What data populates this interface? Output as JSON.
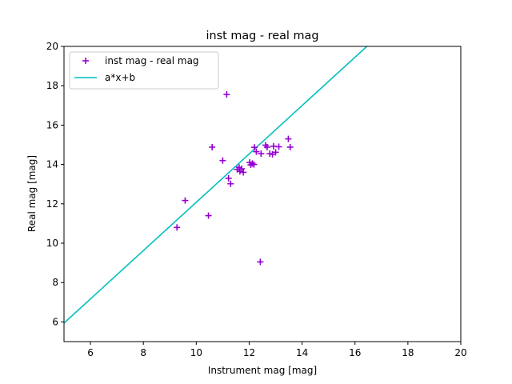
{
  "chart_data": {
    "type": "scatter",
    "title": "inst mag - real mag",
    "xlabel": "Instrument mag [mag]",
    "ylabel": "Real mag [mag]",
    "xlim": [
      5,
      20
    ],
    "ylim": [
      5,
      20
    ],
    "xticks": [
      6,
      8,
      10,
      12,
      14,
      16,
      18,
      20
    ],
    "yticks": [
      6,
      8,
      10,
      12,
      14,
      16,
      18,
      20
    ],
    "grid": false,
    "legend_position": "upper-left",
    "series": [
      {
        "name": "inst mag - real mag",
        "kind": "scatter",
        "marker": "+",
        "color": "#9400D3",
        "points": [
          [
            9.27,
            10.8
          ],
          [
            9.58,
            12.17
          ],
          [
            10.46,
            11.4
          ],
          [
            10.6,
            14.88
          ],
          [
            11.0,
            14.2
          ],
          [
            11.15,
            17.56
          ],
          [
            11.22,
            13.3
          ],
          [
            11.3,
            13.02
          ],
          [
            11.55,
            13.75
          ],
          [
            11.62,
            13.85
          ],
          [
            11.65,
            13.65
          ],
          [
            11.72,
            13.78
          ],
          [
            11.78,
            13.6
          ],
          [
            12.02,
            14.1
          ],
          [
            12.06,
            13.98
          ],
          [
            12.12,
            14.05
          ],
          [
            12.18,
            14.0
          ],
          [
            12.2,
            14.87
          ],
          [
            12.27,
            14.65
          ],
          [
            12.42,
            9.05
          ],
          [
            12.45,
            14.55
          ],
          [
            12.62,
            14.98
          ],
          [
            12.68,
            14.88
          ],
          [
            12.78,
            14.55
          ],
          [
            12.88,
            14.52
          ],
          [
            12.92,
            14.93
          ],
          [
            13.0,
            14.62
          ],
          [
            13.12,
            14.9
          ],
          [
            13.48,
            15.3
          ],
          [
            13.55,
            14.88
          ]
        ]
      },
      {
        "name": "a*x+b",
        "kind": "line",
        "color": "#00BFBF",
        "slope": 1.228,
        "intercept": -0.2
      }
    ]
  }
}
